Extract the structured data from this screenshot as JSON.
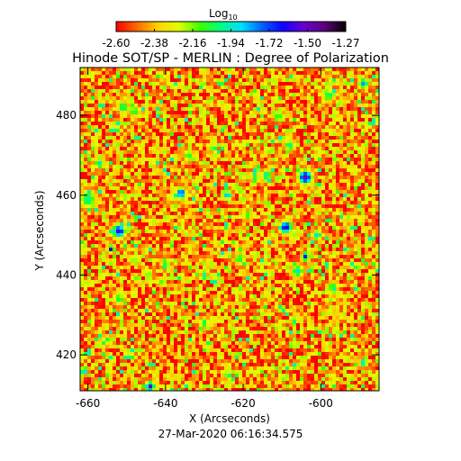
{
  "chart_data": {
    "type": "heatmap",
    "title": "Hinode SOT/SP - MERLIN : Degree of Polarization",
    "xlabel": "X (Arcseconds)",
    "ylabel": "Y (Arcseconds)",
    "timestamp": "27-Mar-2020 06:16:34.575",
    "colorbar": {
      "label_main": "Log",
      "label_sub": "10",
      "tick_labels": [
        "-2.60",
        "-2.38",
        "-2.16",
        "-1.94",
        "-1.72",
        "-1.50",
        "-1.27"
      ],
      "range": [
        -2.6,
        -1.27
      ],
      "colors": [
        "#ff0000",
        "#ff6a00",
        "#ffd200",
        "#e0ff00",
        "#40ff00",
        "#00ff80",
        "#00e0ff",
        "#0060ff",
        "#1000ff",
        "#6800d0",
        "#5a0078",
        "#000000"
      ]
    },
    "xaxis": {
      "ticks": [
        -660,
        -640,
        -620,
        -600
      ],
      "tick_labels": [
        "-660",
        "-640",
        "-620",
        "-600"
      ],
      "range": [
        -662,
        -585
      ]
    },
    "yaxis": {
      "ticks": [
        420,
        440,
        460,
        480
      ],
      "tick_labels": [
        "420",
        "440",
        "460",
        "480"
      ],
      "range": [
        411,
        492
      ]
    },
    "background_level": -2.55,
    "features": [
      {
        "x": -604,
        "y": 464.5,
        "r": 1.8,
        "value": -1.5
      },
      {
        "x": -609,
        "y": 452,
        "r": 1.6,
        "value": -1.55
      },
      {
        "x": -614,
        "y": 465,
        "r": 1.3,
        "value": -1.9
      },
      {
        "x": -652,
        "y": 451,
        "r": 1.7,
        "value": -1.55
      },
      {
        "x": -654,
        "y": 446.5,
        "r": 0.9,
        "value": -1.6
      },
      {
        "x": -636,
        "y": 460.5,
        "r": 1.4,
        "value": -1.65
      },
      {
        "x": -624,
        "y": 460,
        "r": 1.1,
        "value": -1.75
      },
      {
        "x": -604,
        "y": 444.5,
        "r": 1.0,
        "value": -1.65
      },
      {
        "x": -644,
        "y": 412,
        "r": 1.2,
        "value": -1.45
      },
      {
        "x": -608,
        "y": 472.5,
        "r": 1.4,
        "value": -1.95
      },
      {
        "x": -598,
        "y": 485,
        "r": 1.6,
        "value": -2.0
      },
      {
        "x": -589,
        "y": 488,
        "r": 1.3,
        "value": -1.8
      },
      {
        "x": -651,
        "y": 482,
        "r": 1.4,
        "value": -1.95
      },
      {
        "x": -657,
        "y": 468,
        "r": 1.3,
        "value": -1.9
      },
      {
        "x": -660,
        "y": 459,
        "r": 2.2,
        "value": -1.95
      },
      {
        "x": -648,
        "y": 481,
        "r": 1.3,
        "value": -2.0
      },
      {
        "x": -652,
        "y": 434,
        "r": 1.4,
        "value": -2.0
      },
      {
        "x": -630,
        "y": 428,
        "r": 1.3,
        "value": -2.0
      },
      {
        "x": -621,
        "y": 444,
        "r": 1.3,
        "value": -2.0
      },
      {
        "x": -606,
        "y": 441,
        "r": 1.6,
        "value": -1.9
      },
      {
        "x": -597,
        "y": 437,
        "r": 1.3,
        "value": -2.0
      },
      {
        "x": -661,
        "y": 416,
        "r": 0.9,
        "value": -1.7
      },
      {
        "x": -589,
        "y": 418,
        "r": 1.0,
        "value": -1.8
      },
      {
        "x": -611,
        "y": 480,
        "r": 1.4,
        "value": -2.05
      },
      {
        "x": -640,
        "y": 443,
        "r": 1.3,
        "value": -2.05
      },
      {
        "x": -601,
        "y": 450,
        "r": 1.2,
        "value": -1.85
      },
      {
        "x": -634,
        "y": 470,
        "r": 1.4,
        "value": -2.05
      },
      {
        "x": -619,
        "y": 455,
        "r": 1.2,
        "value": -2.05
      },
      {
        "x": -617,
        "y": 465,
        "r": 1.0,
        "value": -1.9
      },
      {
        "x": -656,
        "y": 423,
        "r": 1.2,
        "value": -2.05
      }
    ]
  }
}
